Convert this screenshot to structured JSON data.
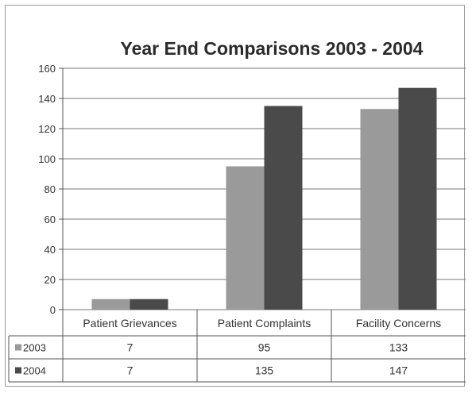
{
  "chart_data": {
    "type": "bar",
    "title": "Year End Comparisons 2003 - 2004",
    "categories": [
      "Patient Grievances",
      "Patient Complaints",
      "Facility Concerns"
    ],
    "series": [
      {
        "name": "2003",
        "values": [
          7,
          95,
          133
        ],
        "labels": [
          "7",
          "95",
          "133"
        ],
        "color": "#9a9a9a"
      },
      {
        "name": "2004",
        "values": [
          7,
          135,
          147
        ],
        "labels": [
          "7",
          "135",
          "147"
        ],
        "color": "#4a4a4a"
      }
    ],
    "ylim": [
      0,
      160
    ],
    "yticks": [
      "0",
      "20",
      "40",
      "60",
      "80",
      "100",
      "120",
      "140",
      "160"
    ],
    "grid": true,
    "legend": "data-table"
  }
}
